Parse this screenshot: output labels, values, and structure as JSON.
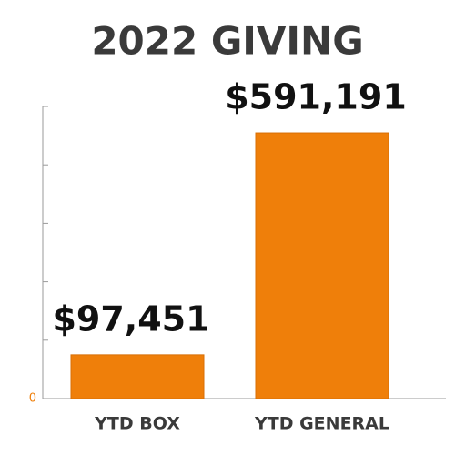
{
  "chart_data": {
    "type": "bar",
    "title": "2022 GIVING",
    "categories": [
      "YTD BOX",
      "YTD GENERAL"
    ],
    "values": [
      97451,
      591191
    ],
    "value_labels": [
      "$97,451",
      "$591,191"
    ],
    "color": "#ef7f0a",
    "ylim": [
      0,
      650000
    ],
    "yticks": [
      0
    ],
    "minor_yticks": [
      130000,
      260000,
      390000,
      520000,
      650000
    ]
  }
}
